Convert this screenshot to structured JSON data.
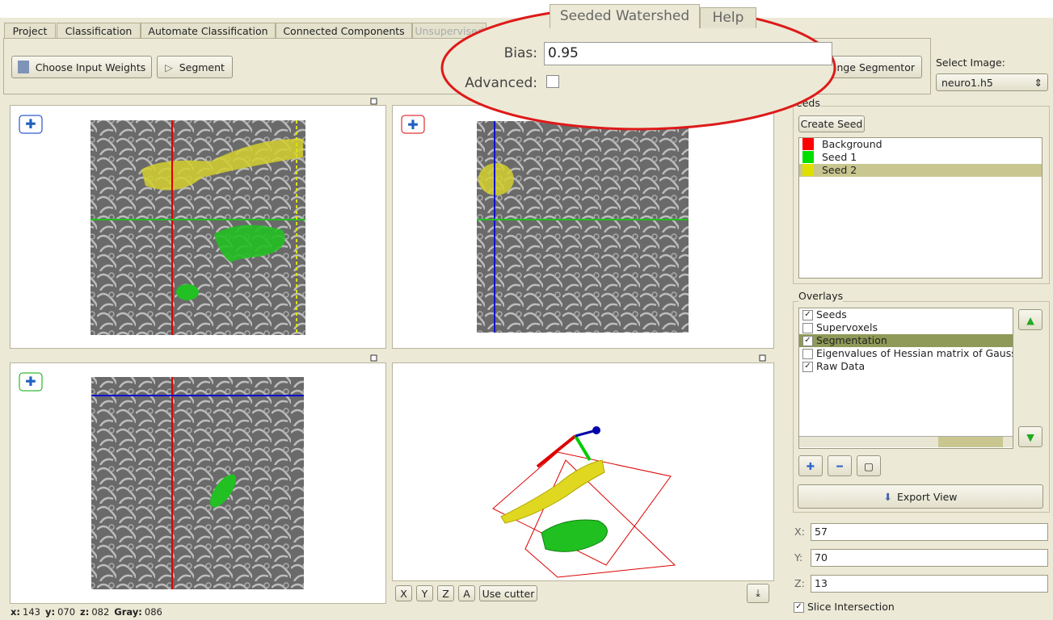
{
  "tabs": [
    "Project",
    "Classification",
    "Automate Classification",
    "Connected Components",
    "Unsupervised",
    "Seeded Watershed",
    "Help"
  ],
  "toolbar": {
    "choose_weights": "Choose Input Weights",
    "segment": "Segment",
    "change_segmentor": "ange Segmentor"
  },
  "callout": {
    "bias_label": "Bias:",
    "bias_value": "0.95",
    "advanced_label": "Advanced:",
    "advanced_checked": false
  },
  "select_image": {
    "label": "Select Image:",
    "value": "neuro1.h5"
  },
  "seeds": {
    "title": "eeds",
    "create": "Create Seed",
    "items": [
      {
        "label": "Background",
        "color": "#ff0000",
        "selected": false
      },
      {
        "label": "Seed 1",
        "color": "#00e000",
        "selected": false
      },
      {
        "label": "Seed 2",
        "color": "#e0e000",
        "selected": true
      }
    ]
  },
  "overlays": {
    "title": "Overlays",
    "items": [
      {
        "label": "Seeds",
        "checked": true,
        "selected": false
      },
      {
        "label": "Supervoxels",
        "checked": false,
        "selected": false
      },
      {
        "label": "Segmentation",
        "checked": true,
        "selected": true
      },
      {
        "label": "Eigenvalues of Hessian matrix of Gaussia",
        "checked": false,
        "selected": false
      },
      {
        "label": "Raw Data",
        "checked": true,
        "selected": false
      }
    ]
  },
  "export": "Export View",
  "coords": [
    {
      "label": "X:",
      "value": "57"
    },
    {
      "label": "Y:",
      "value": "70"
    },
    {
      "label": "Z:",
      "value": "13"
    }
  ],
  "slice_intersection": {
    "label": "Slice Intersection",
    "checked": true
  },
  "view3d_buttons": [
    "X",
    "Y",
    "Z",
    "A",
    "Use cutter"
  ],
  "status": [
    {
      "label": "x:",
      "value": "143"
    },
    {
      "label": "y:",
      "value": "070"
    },
    {
      "label": "z:",
      "value": "082"
    },
    {
      "label": "Gray:",
      "value": "086"
    }
  ]
}
